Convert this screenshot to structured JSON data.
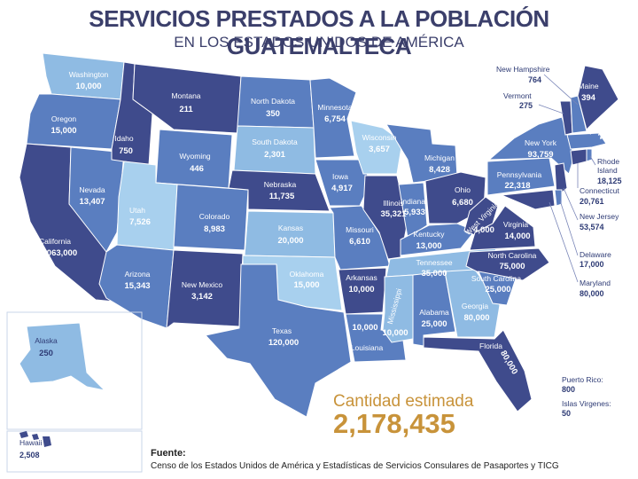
{
  "title": "SERVICIOS PRESTADOS A LA POBLACIÓN GUATEMALTECA",
  "subtitle": "EN LOS ESTADOS UNIDOS DE AMÉRICA",
  "states": {
    "washington": {
      "name": "Washington",
      "value": "10,000"
    },
    "oregon": {
      "name": "Oregon",
      "value": "15,000"
    },
    "california": {
      "name": "California",
      "value": "1,063,000"
    },
    "idaho": {
      "name": "Idaho",
      "value": "750"
    },
    "nevada": {
      "name": "Nevada",
      "value": "13,407"
    },
    "montana": {
      "name": "Montana",
      "value": "211"
    },
    "wyoming": {
      "name": "Wyoming",
      "value": "446"
    },
    "utah": {
      "name": "Utah",
      "value": "7,526"
    },
    "arizona": {
      "name": "Arizona",
      "value": "15,343"
    },
    "colorado": {
      "name": "Colorado",
      "value": "8,983"
    },
    "new_mexico": {
      "name": "New Mexico",
      "value": "3,142"
    },
    "north_dakota": {
      "name": "North Dakota",
      "value": "350"
    },
    "south_dakota": {
      "name": "South Dakota",
      "value": "2,301"
    },
    "nebraska": {
      "name": "Nebraska",
      "value": "11,735"
    },
    "kansas": {
      "name": "Kansas",
      "value": "20,000"
    },
    "oklahoma": {
      "name": "Oklahoma",
      "value": "15,000"
    },
    "texas": {
      "name": "Texas",
      "value": "120,000"
    },
    "minnesota": {
      "name": "Minnesota",
      "value": "6,754"
    },
    "iowa": {
      "name": "Iowa",
      "value": "4,917"
    },
    "missouri": {
      "name": "Missouri",
      "value": "6,610"
    },
    "arkansas": {
      "name": "Arkansas",
      "value": "10,000"
    },
    "louisiana": {
      "name": "Louisiana",
      "value": "10,000"
    },
    "wisconsin": {
      "name": "Wisconsin",
      "value": "3,657"
    },
    "illinois": {
      "name": "Illinois",
      "value": "35,321"
    },
    "mississippi": {
      "name": "Mississippi",
      "value": "10,000"
    },
    "michigan": {
      "name": "Michigan",
      "value": "8,428"
    },
    "indiana": {
      "name": "Indiana",
      "value": "5,933"
    },
    "kentucky": {
      "name": "Kentucky",
      "value": "13,000"
    },
    "tennessee": {
      "name": "Tennessee",
      "value": "35,000"
    },
    "alabama": {
      "name": "Alabama",
      "value": "25,000"
    },
    "georgia": {
      "name": "Georgia",
      "value": "80,000"
    },
    "florida": {
      "name": "Florida",
      "value": "80,000"
    },
    "ohio": {
      "name": "Ohio",
      "value": "6,680"
    },
    "west_virginia": {
      "name": "West Virginia",
      "value": "4,000"
    },
    "virginia": {
      "name": "Virginia",
      "value": "14,000"
    },
    "north_carolina": {
      "name": "North Carolina",
      "value": "75,000"
    },
    "south_carolina": {
      "name": "South Carolina",
      "value": "25,000"
    },
    "pennsylvania": {
      "name": "Pennsylvania",
      "value": "22,318"
    },
    "new_york": {
      "name": "New York",
      "value": "93,759"
    },
    "maine": {
      "name": "Maine",
      "value": "394"
    },
    "massachusetts": {
      "name": "Massachusetts",
      "value": "28,549"
    },
    "alaska": {
      "name": "Alaska",
      "value": "250"
    },
    "hawaii": {
      "name": "Hawaii",
      "value": "2,508"
    }
  },
  "callouts": {
    "new_hampshire": {
      "name": "New Hampshire",
      "value": "764"
    },
    "vermont": {
      "name": "Vermont",
      "value": "275"
    },
    "rhode_island": {
      "name": "Rhode Island",
      "value": "18,125"
    },
    "connecticut": {
      "name": "Connecticut",
      "value": "20,761"
    },
    "new_jersey": {
      "name": "New Jersey",
      "value": "53,574"
    },
    "delaware": {
      "name": "Delaware",
      "value": "17,000"
    },
    "maryland": {
      "name": "Maryland",
      "value": "80,000"
    },
    "puerto_rico": {
      "name": "Puerto Rico:",
      "value": "800"
    },
    "virgin_islands": {
      "name": "Islas Virgenes:",
      "value": "50"
    }
  },
  "total": {
    "label": "Cantidad estimada",
    "value": "2,178,435"
  },
  "source": {
    "label": "Fuente:",
    "text": "Censo de los Estados Unidos de América y Estadísticas de Servicios Consulares de Pasaportes y TICG"
  },
  "colors": {
    "dark": "#3f4b8c",
    "mid": "#5a7ec0",
    "light": "#8fbbe3",
    "pale": "#a8d0ee",
    "text": "#3b3f6b",
    "accent": "#c8933a"
  }
}
